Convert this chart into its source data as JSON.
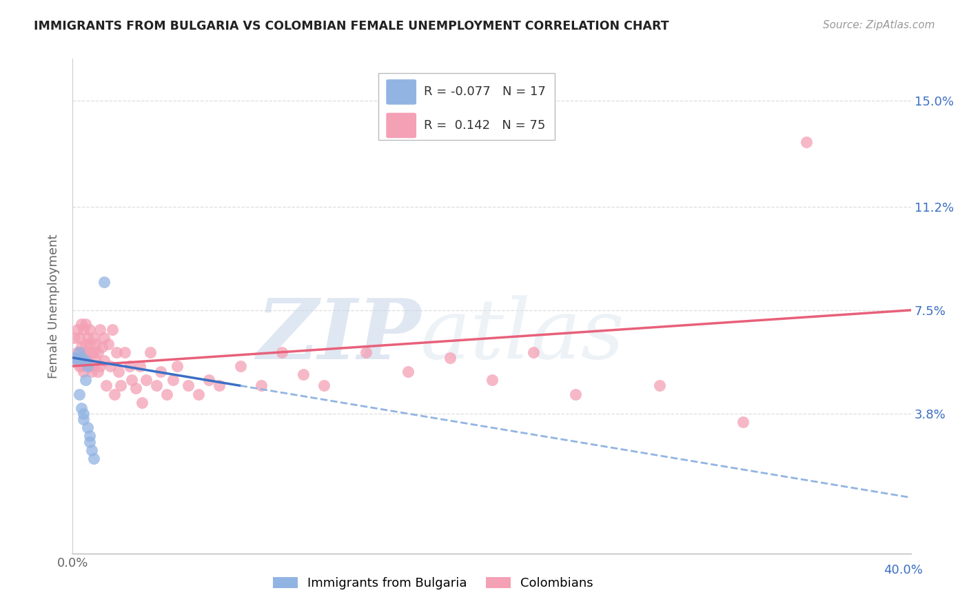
{
  "title": "IMMIGRANTS FROM BULGARIA VS COLOMBIAN FEMALE UNEMPLOYMENT CORRELATION CHART",
  "source": "Source: ZipAtlas.com",
  "ylabel": "Female Unemployment",
  "ytick_labels": [
    "15.0%",
    "11.2%",
    "7.5%",
    "3.8%"
  ],
  "ytick_values": [
    0.15,
    0.112,
    0.075,
    0.038
  ],
  "xtick_left_label": "0.0%",
  "xtick_right_label": "40.0%",
  "xlim": [
    0.0,
    0.4
  ],
  "ylim": [
    -0.012,
    0.165
  ],
  "watermark_zip": "ZIP",
  "watermark_atlas": "atlas",
  "legend_r_blue": "-0.077",
  "legend_n_blue": "17",
  "legend_r_pink": "0.142",
  "legend_n_pink": "75",
  "blue_fill": "#92b4e3",
  "pink_fill": "#f4a0b5",
  "blue_line": "#3a6fc4",
  "pink_line": "#e8607a",
  "blue_dash": "#92b4e3",
  "blue_x": [
    0.001,
    0.002,
    0.003,
    0.003,
    0.004,
    0.004,
    0.005,
    0.005,
    0.006,
    0.006,
    0.007,
    0.007,
    0.008,
    0.008,
    0.009,
    0.01,
    0.015
  ],
  "blue_y": [
    0.058,
    0.057,
    0.06,
    0.045,
    0.058,
    0.04,
    0.038,
    0.036,
    0.057,
    0.05,
    0.055,
    0.033,
    0.03,
    0.028,
    0.025,
    0.022,
    0.085
  ],
  "pink_x": [
    0.001,
    0.001,
    0.002,
    0.002,
    0.003,
    0.003,
    0.003,
    0.004,
    0.004,
    0.004,
    0.005,
    0.005,
    0.005,
    0.006,
    0.006,
    0.006,
    0.007,
    0.007,
    0.007,
    0.008,
    0.008,
    0.008,
    0.009,
    0.009,
    0.01,
    0.01,
    0.01,
    0.011,
    0.011,
    0.012,
    0.012,
    0.013,
    0.013,
    0.014,
    0.015,
    0.015,
    0.016,
    0.017,
    0.018,
    0.019,
    0.02,
    0.021,
    0.022,
    0.023,
    0.025,
    0.027,
    0.028,
    0.03,
    0.032,
    0.033,
    0.035,
    0.037,
    0.04,
    0.042,
    0.045,
    0.048,
    0.05,
    0.055,
    0.06,
    0.065,
    0.07,
    0.08,
    0.09,
    0.1,
    0.11,
    0.12,
    0.14,
    0.16,
    0.18,
    0.2,
    0.22,
    0.24,
    0.28,
    0.32,
    0.35
  ],
  "pink_y": [
    0.058,
    0.065,
    0.06,
    0.068,
    0.058,
    0.065,
    0.055,
    0.062,
    0.07,
    0.055,
    0.06,
    0.068,
    0.053,
    0.063,
    0.057,
    0.07,
    0.06,
    0.065,
    0.058,
    0.063,
    0.055,
    0.068,
    0.06,
    0.053,
    0.065,
    0.06,
    0.055,
    0.063,
    0.057,
    0.06,
    0.053,
    0.068,
    0.055,
    0.062,
    0.057,
    0.065,
    0.048,
    0.063,
    0.055,
    0.068,
    0.045,
    0.06,
    0.053,
    0.048,
    0.06,
    0.055,
    0.05,
    0.047,
    0.055,
    0.042,
    0.05,
    0.06,
    0.048,
    0.053,
    0.045,
    0.05,
    0.055,
    0.048,
    0.045,
    0.05,
    0.048,
    0.055,
    0.048,
    0.06,
    0.052,
    0.048,
    0.06,
    0.053,
    0.058,
    0.05,
    0.06,
    0.045,
    0.048,
    0.035,
    0.135
  ]
}
